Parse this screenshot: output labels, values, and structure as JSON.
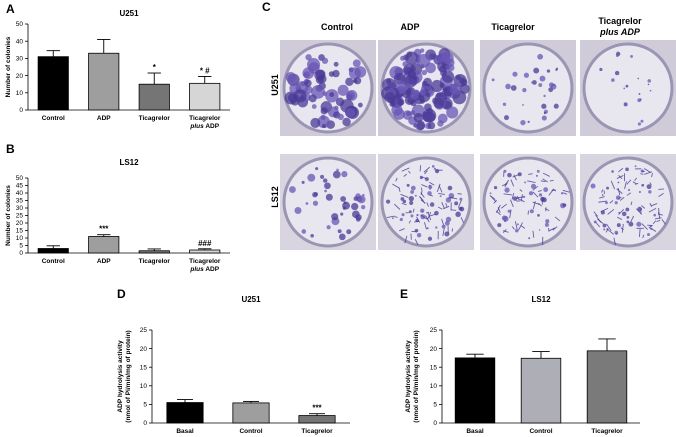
{
  "chart_data": [
    {
      "panel": "A",
      "type": "bar",
      "title": "U251",
      "ylabel": "Number of colonies",
      "ylim": [
        0,
        50
      ],
      "yticks": [
        0,
        10,
        20,
        30,
        40,
        50
      ],
      "categories": [
        {
          "line1": "Control",
          "line2": "",
          "line2_italic": ""
        },
        {
          "line1": "ADP",
          "line2": "",
          "line2_italic": ""
        },
        {
          "line1": "Ticagrelor",
          "line2": "",
          "line2_italic": ""
        },
        {
          "line1": "Ticagrelor",
          "line2": " ADP",
          "line2_italic": "plus"
        }
      ],
      "values": [
        31,
        33,
        15,
        15.5
      ],
      "errors": [
        3.5,
        8,
        6.5,
        4
      ],
      "colors": [
        "#000000",
        "#9e9e9e",
        "#757575",
        "#d6d6d6"
      ],
      "significance": [
        "",
        "",
        "*",
        "* #"
      ]
    },
    {
      "panel": "B",
      "type": "bar",
      "title": "LS12",
      "ylabel": "Number of colonies",
      "ylim": [
        0,
        50
      ],
      "yticks": [
        0,
        5,
        10,
        15,
        20,
        25,
        30,
        35,
        40,
        45,
        50
      ],
      "categories": [
        {
          "line1": "Control",
          "line2": "",
          "line2_italic": ""
        },
        {
          "line1": "ADP",
          "line2": "",
          "line2_italic": ""
        },
        {
          "line1": "Ticagrelor",
          "line2": "",
          "line2_italic": ""
        },
        {
          "line1": "Ticagrelor",
          "line2": " ADP",
          "line2_italic": "plus"
        }
      ],
      "values": [
        3,
        11,
        1.5,
        2
      ],
      "errors": [
        1.8,
        1.2,
        1.2,
        0.8
      ],
      "colors": [
        "#000000",
        "#9e9e9e",
        "#757575",
        "#d6d6d6"
      ],
      "significance": [
        "",
        "***",
        "",
        "###"
      ]
    },
    {
      "panel": "D",
      "type": "bar",
      "title": "U251",
      "ylabel_line1": "ADP hydrolysis activity",
      "ylabel_line2": "(nmol of Pi/min/mg of protein)",
      "ylim": [
        0,
        25
      ],
      "yticks": [
        0,
        5,
        10,
        15,
        20,
        25
      ],
      "categories": [
        "Basal",
        "Control",
        "Ticagrelor"
      ],
      "values": [
        5.5,
        5.4,
        2.0
      ],
      "errors": [
        0.8,
        0.4,
        0.5
      ],
      "colors": [
        "#000000",
        "#9e9e9e",
        "#757575"
      ],
      "significance": [
        "",
        "",
        "***"
      ]
    },
    {
      "panel": "E",
      "type": "bar",
      "title": "LS12",
      "ylabel_line1": "ADP hydrolysis activity",
      "ylabel_line2": "(nmol of Pi/min/mg of protein)",
      "ylim": [
        0,
        25
      ],
      "yticks": [
        0,
        5,
        10,
        15,
        20,
        25
      ],
      "categories": [
        "Basal",
        "Control",
        "Ticagrelor"
      ],
      "values": [
        17.5,
        17.4,
        19.4
      ],
      "errors": [
        1.0,
        1.8,
        3.2
      ],
      "colors": [
        "#000000",
        "#aeaeb6",
        "#7a7a7a"
      ],
      "significance": [
        "",
        "",
        ""
      ]
    }
  ],
  "panel_c": {
    "label": "C",
    "columns": [
      {
        "line1": "Control",
        "line2": ""
      },
      {
        "line1": "ADP",
        "line2": ""
      },
      {
        "line1": "Ticagrelor",
        "line2": ""
      },
      {
        "line1": "Ticagrelor",
        "line2": "plus ADP"
      }
    ],
    "rows": [
      "U251",
      "LS12"
    ],
    "colors": {
      "stain": "#6a56b6",
      "stain_dark": "#4a3a96",
      "plate_bg": "#e8e6ef",
      "plate_rim": "#9b95b3"
    }
  }
}
